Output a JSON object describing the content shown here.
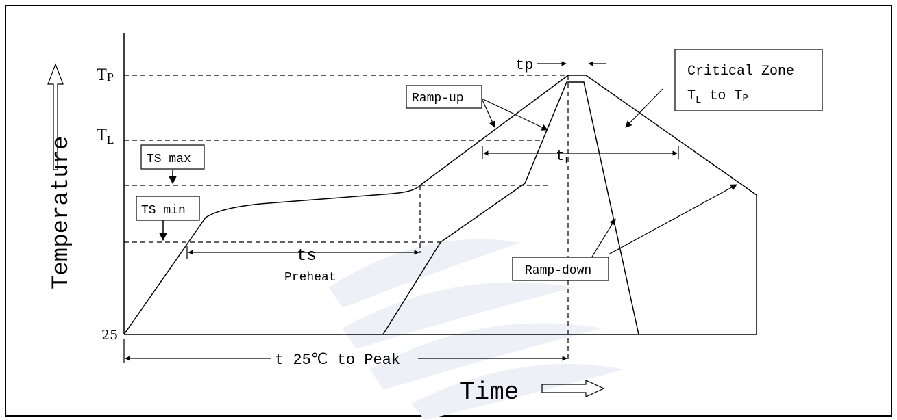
{
  "diagram": {
    "axes": {
      "y_label": "Temperature",
      "x_label": "Time",
      "y_tick_tp": "T",
      "y_tick_tp_sub": "P",
      "y_tick_tl": "T",
      "y_tick_tl_sub": "L",
      "y_tick_25": "25"
    },
    "labels": {
      "ts_max": "TS max",
      "ts_min": "TS min",
      "ramp_up": "Ramp-up",
      "ramp_down": "Ramp-down",
      "critical_zone_line1": "Critical Zone",
      "critical_zone_line2_a": "T",
      "critical_zone_line2_a_sub": "L",
      "critical_zone_line2_b": " to T",
      "critical_zone_line2_b_sub": "P",
      "tp": "tp",
      "tl": "t",
      "tl_sub": "L",
      "ts": "ts",
      "preheat": "Preheat",
      "t_to_peak": "t 25℃ to Peak"
    }
  }
}
